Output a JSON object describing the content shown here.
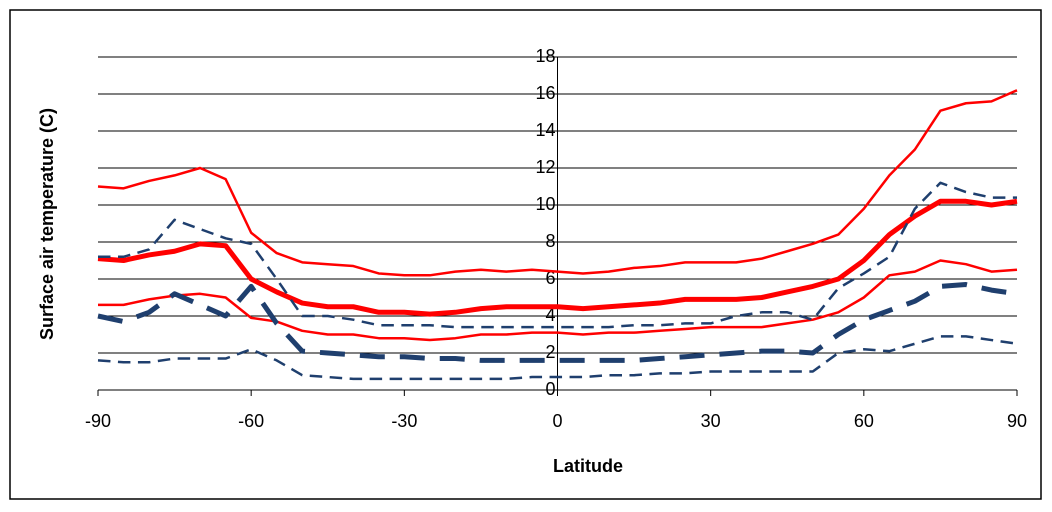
{
  "chart_data": {
    "type": "line",
    "xlabel": "Latitude",
    "ylabel": "Surface air temperature (C)",
    "x": [
      -90,
      -85,
      -80,
      -75,
      -70,
      -65,
      -60,
      -55,
      -50,
      -45,
      -40,
      -35,
      -30,
      -25,
      -20,
      -15,
      -10,
      -5,
      0,
      5,
      10,
      15,
      20,
      25,
      30,
      35,
      40,
      45,
      50,
      55,
      60,
      65,
      70,
      75,
      80,
      85,
      90
    ],
    "series": [
      {
        "color": "#ff0000",
        "dash": false,
        "linewidth": 2.5,
        "values": [
          11.0,
          10.9,
          11.3,
          11.6,
          12.0,
          11.4,
          8.5,
          7.4,
          6.9,
          6.8,
          6.7,
          6.3,
          6.2,
          6.2,
          6.4,
          6.5,
          6.4,
          6.5,
          6.4,
          6.3,
          6.4,
          6.6,
          6.7,
          6.9,
          6.9,
          6.9,
          7.1,
          7.5,
          7.9,
          8.4,
          9.8,
          11.6,
          13.0,
          15.1,
          15.5,
          15.6,
          16.2
        ]
      },
      {
        "color": "#ff0000",
        "dash": false,
        "linewidth": 5,
        "values": [
          7.1,
          7.0,
          7.3,
          7.5,
          7.9,
          7.8,
          6.0,
          5.3,
          4.7,
          4.5,
          4.5,
          4.2,
          4.2,
          4.1,
          4.2,
          4.4,
          4.5,
          4.5,
          4.5,
          4.4,
          4.5,
          4.6,
          4.7,
          4.9,
          4.9,
          4.9,
          5.0,
          5.3,
          5.6,
          6.0,
          7.0,
          8.4,
          9.4,
          10.2,
          10.2,
          10.0,
          10.2
        ]
      },
      {
        "color": "#ff0000",
        "dash": false,
        "linewidth": 2.5,
        "values": [
          4.6,
          4.6,
          4.9,
          5.1,
          5.2,
          5.0,
          3.9,
          3.7,
          3.2,
          3.0,
          3.0,
          2.8,
          2.8,
          2.7,
          2.8,
          3.0,
          3.0,
          3.1,
          3.1,
          3.0,
          3.1,
          3.1,
          3.2,
          3.3,
          3.4,
          3.4,
          3.4,
          3.6,
          3.8,
          4.2,
          5.0,
          6.2,
          6.4,
          7.0,
          6.8,
          6.4,
          6.5
        ]
      },
      {
        "color": "#1f3f6e",
        "dash": true,
        "linewidth": 2.5,
        "values": [
          7.2,
          7.2,
          7.6,
          9.2,
          8.7,
          8.2,
          7.9,
          6.0,
          4.0,
          4.0,
          3.8,
          3.5,
          3.5,
          3.5,
          3.4,
          3.4,
          3.4,
          3.4,
          3.4,
          3.4,
          3.4,
          3.5,
          3.5,
          3.6,
          3.6,
          4.0,
          4.2,
          4.2,
          3.8,
          5.5,
          6.3,
          7.2,
          9.8,
          11.2,
          10.7,
          10.4,
          10.4
        ]
      },
      {
        "color": "#1f3f6e",
        "dash": true,
        "linewidth": 5,
        "values": [
          4.0,
          3.7,
          4.2,
          5.2,
          4.6,
          4.0,
          5.6,
          3.6,
          2.1,
          2.0,
          1.9,
          1.8,
          1.8,
          1.7,
          1.7,
          1.6,
          1.6,
          1.6,
          1.6,
          1.6,
          1.6,
          1.6,
          1.7,
          1.8,
          1.9,
          2.0,
          2.1,
          2.1,
          2.0,
          3.0,
          3.8,
          4.3,
          4.8,
          5.6,
          5.7,
          5.4,
          5.2
        ]
      },
      {
        "color": "#1f3f6e",
        "dash": true,
        "linewidth": 2.5,
        "values": [
          1.6,
          1.5,
          1.5,
          1.7,
          1.7,
          1.7,
          2.2,
          1.6,
          0.8,
          0.7,
          0.6,
          0.6,
          0.6,
          0.6,
          0.6,
          0.6,
          0.6,
          0.7,
          0.7,
          0.7,
          0.8,
          0.8,
          0.9,
          0.9,
          1.0,
          1.0,
          1.0,
          1.0,
          1.0,
          2.0,
          2.2,
          2.1,
          2.5,
          2.9,
          2.9,
          2.7,
          2.5
        ]
      }
    ],
    "xlim": [
      -90,
      90
    ],
    "xticks": [
      -90,
      -60,
      -30,
      0,
      30,
      60,
      90
    ],
    "ylim": [
      0,
      18
    ],
    "yticks": [
      0,
      2,
      4,
      6,
      8,
      10,
      12,
      14,
      16,
      18
    ],
    "grid": true
  }
}
